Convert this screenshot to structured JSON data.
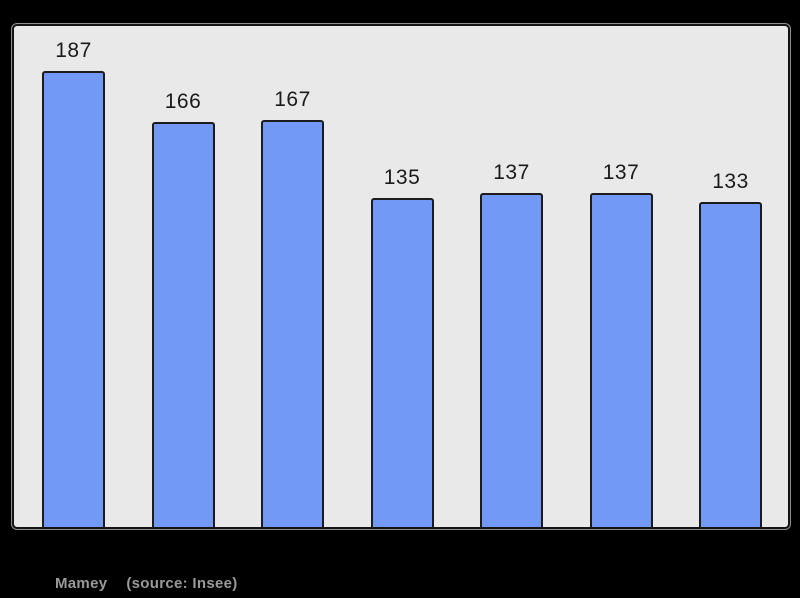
{
  "page": {
    "background_color": "#000000"
  },
  "chart_data": {
    "type": "bar",
    "values": [
      187,
      166,
      167,
      135,
      137,
      137,
      133
    ],
    "bar_value_labels": [
      "187",
      "166",
      "167",
      "135",
      "137",
      "137",
      "133"
    ],
    "categories": [
      "",
      "",
      "",
      "",
      "",
      "",
      ""
    ],
    "title": "",
    "xlabel": "",
    "ylabel": "",
    "ylim": [
      0,
      217
    ],
    "grid": false,
    "legend": false,
    "layout": {
      "legend_position": "none",
      "value_labels_above_bars": true,
      "axis_tick_labels_visible": false
    },
    "colors": {
      "page_background": "#000000",
      "plot_background": "#E9E9E9",
      "plot_border": "#141414",
      "plot_outline": "#8F8F8F",
      "bar_fill": "#7399F7",
      "bar_border": "#1C1C1C",
      "value_label": "#1A1A1A",
      "caption_text": "#9A9A9A"
    }
  },
  "caption": {
    "name": "Mamey",
    "source": "(source: Insee)"
  }
}
